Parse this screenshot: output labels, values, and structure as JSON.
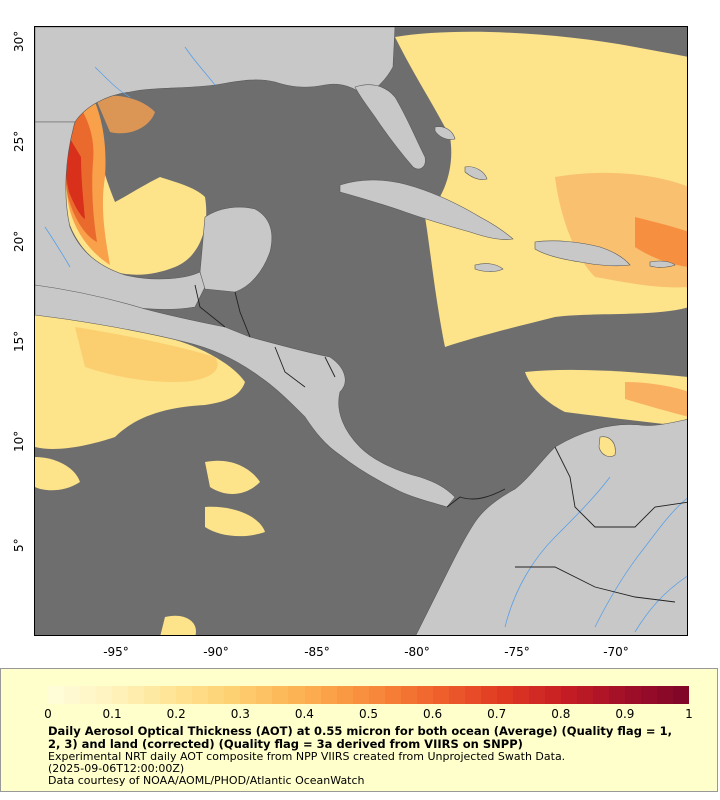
{
  "map": {
    "x_ticks": [
      "-95°",
      "-90°",
      "-85°",
      "-80°",
      "-75°",
      "-70°"
    ],
    "y_ticks": [
      "30°",
      "25°",
      "20°",
      "15°",
      "10°",
      "5°"
    ],
    "colors": {
      "no_data_ocean": "#6e6e6e",
      "land": "#c8c8c8",
      "borders": "#333333",
      "rivers": "#5aa0e6",
      "low_aot": "#fde38a",
      "mid_aot": "#f9a04a",
      "high_aot": "#e0341c"
    }
  },
  "legend": {
    "colorbar_labels": [
      "0",
      "0.1",
      "0.2",
      "0.3",
      "0.4",
      "0.5",
      "0.6",
      "0.7",
      "0.8",
      "0.9",
      "1"
    ],
    "title": "Daily Aerosol Optical Thickness (AOT) at 0.55 micron for both ocean (Average) (Quality flag = 1, 2, 3) and land (corrected) (Quality flag = 3a derived from VIIRS on SNPP)",
    "line1": "Experimental NRT daily AOT composite from NPP VIIRS created from Unprojected Swath Data.",
    "line2": "(2025-09-06T12:00:00Z)",
    "line3": "Data courtesy of NOAA/AOML/PHOD/Atlantic OceanWatch"
  }
}
